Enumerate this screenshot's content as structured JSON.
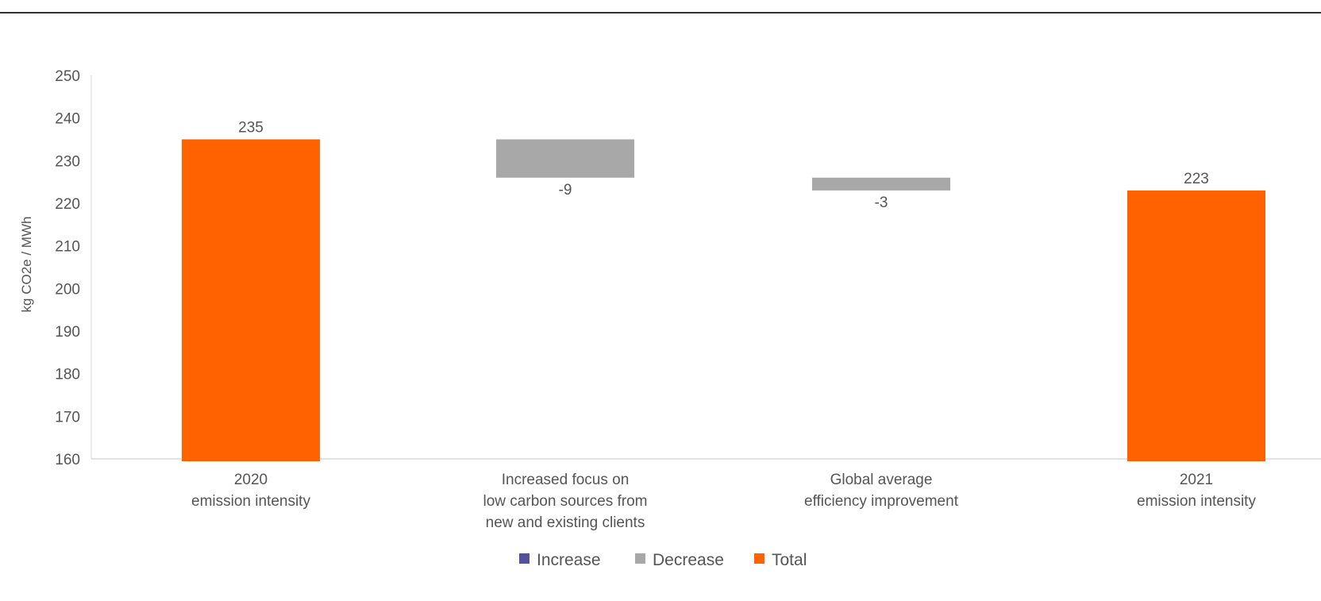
{
  "chart_data": {
    "type": "bar",
    "subtype": "waterfall",
    "title": "",
    "xlabel": "",
    "ylabel": "kg CO2e / MWh",
    "ylim": [
      160,
      250
    ],
    "yticks": [
      160,
      170,
      180,
      190,
      200,
      210,
      220,
      230,
      240,
      250
    ],
    "grid": false,
    "legend_position": "bottom-center",
    "categories": [
      [
        "2020",
        "emission intensity"
      ],
      [
        "Increased focus on",
        "low carbon sources from",
        "new and existing clients"
      ],
      [
        "Global average",
        "efficiency improvement"
      ],
      [
        "2021",
        "emission intensity"
      ]
    ],
    "bars": [
      {
        "kind": "Total",
        "start": 160,
        "end": 235,
        "label": "235"
      },
      {
        "kind": "Decrease",
        "start": 235,
        "end": 226,
        "label": "-9"
      },
      {
        "kind": "Decrease",
        "start": 226,
        "end": 223,
        "label": "-3"
      },
      {
        "kind": "Total",
        "start": 160,
        "end": 223,
        "label": "223"
      }
    ],
    "legend": [
      {
        "name": "Increase",
        "color": "#525199"
      },
      {
        "name": "Decrease",
        "color": "#A8A8A8"
      },
      {
        "name": "Total",
        "color": "#FF6200"
      }
    ]
  }
}
